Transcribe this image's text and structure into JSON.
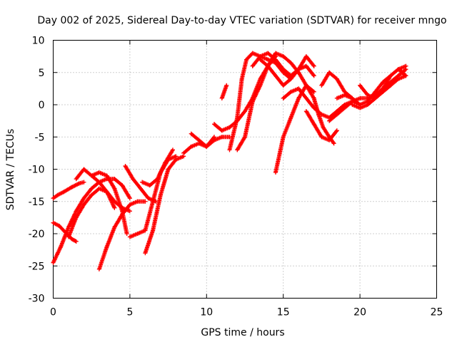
{
  "chart_data": {
    "type": "scatter",
    "title": "Day 002 of 2025, Sidereal Day-to-day VTEC variation (SDTVAR) for receiver mngo",
    "xlabel": "GPS time / hours",
    "ylabel": "SDTVAR / TECUs",
    "xlim": [
      0,
      25
    ],
    "ylim": [
      -30,
      10
    ],
    "xticks": [
      "0",
      "5",
      "10",
      "15",
      "20",
      "25"
    ],
    "yticks": [
      "10",
      "5",
      "0",
      "-5",
      "-10",
      "-15",
      "-20",
      "-25",
      "-30"
    ],
    "grid": true,
    "marker": "+",
    "color": "#ff0000",
    "series": [
      {
        "x": [
          0.0,
          0.3,
          0.7,
          1.2,
          1.7,
          2.0
        ],
        "y": [
          -14.5,
          -14.0,
          -13.5,
          -12.8,
          -12.2,
          -12.0
        ]
      },
      {
        "x": [
          0.0,
          0.5,
          1.0,
          1.5,
          2.0,
          2.5,
          3.0,
          3.5,
          4.0,
          4.5,
          5.0
        ],
        "y": [
          -24.5,
          -22.0,
          -19.0,
          -16.5,
          -14.5,
          -13.0,
          -12.0,
          -11.5,
          -11.5,
          -12.5,
          -14.5
        ]
      },
      {
        "x": [
          0.0,
          0.4,
          0.8,
          1.2,
          1.5
        ],
        "y": [
          -18.3,
          -18.8,
          -19.8,
          -20.8,
          -21.2
        ]
      },
      {
        "x": [
          1.0,
          1.5,
          2.0,
          2.5,
          3.0,
          3.5,
          4.0
        ],
        "y": [
          -20.5,
          -17.5,
          -15.5,
          -14.0,
          -13.0,
          -13.5,
          -16.0
        ]
      },
      {
        "x": [
          1.5,
          2.0,
          2.5,
          3.0,
          3.5,
          4.0,
          4.5,
          5.0
        ],
        "y": [
          -11.5,
          -10.0,
          -11.0,
          -12.0,
          -13.5,
          -15.0,
          -16.0,
          -16.5
        ]
      },
      {
        "x": [
          2.5,
          3.0,
          3.5,
          4.0,
          4.5,
          4.8
        ],
        "y": [
          -11.0,
          -10.5,
          -11.0,
          -13.0,
          -16.5,
          -20.0
        ]
      },
      {
        "x": [
          3.0,
          3.5,
          4.0,
          4.5,
          5.0,
          5.5,
          6.0
        ],
        "y": [
          -25.5,
          -22.0,
          -19.0,
          -17.0,
          -15.5,
          -15.0,
          -15.0
        ]
      },
      {
        "x": [
          4.7,
          5.2,
          5.7,
          6.2,
          6.7
        ],
        "y": [
          -9.5,
          -11.5,
          -13.0,
          -14.5,
          -15.0
        ]
      },
      {
        "x": [
          5.0,
          5.5,
          6.0,
          6.5,
          7.0,
          7.5,
          8.0
        ],
        "y": [
          -20.5,
          -20.0,
          -19.5,
          -15.0,
          -10.5,
          -8.5,
          -8.0
        ]
      },
      {
        "x": [
          6.0,
          6.5,
          7.0,
          7.5,
          8.0,
          8.5
        ],
        "y": [
          -23.0,
          -19.5,
          -14.0,
          -10.0,
          -8.5,
          -8.0
        ]
      },
      {
        "x": [
          5.8,
          6.3,
          6.8,
          7.3,
          7.8
        ],
        "y": [
          -12.0,
          -12.5,
          -11.5,
          -9.0,
          -7.0
        ]
      },
      {
        "x": [
          8.5,
          9.0,
          9.5,
          10.0,
          10.5,
          11.0,
          11.5
        ],
        "y": [
          -7.5,
          -6.5,
          -6.0,
          -6.5,
          -5.5,
          -5.0,
          -5.0
        ]
      },
      {
        "x": [
          9.0,
          9.5,
          10.0,
          10.5
        ],
        "y": [
          -4.5,
          -5.5,
          -6.5,
          -5.0
        ]
      },
      {
        "x": [
          10.5,
          11.0,
          11.5,
          12.0,
          12.5,
          13.0,
          13.5,
          14.0,
          14.5
        ],
        "y": [
          -3.0,
          -4.0,
          -3.5,
          -2.5,
          -1.0,
          1.0,
          4.0,
          6.0,
          7.5
        ]
      },
      {
        "x": [
          11.0,
          11.3
        ],
        "y": [
          1.0,
          3.0
        ]
      },
      {
        "x": [
          11.5,
          12.0,
          12.3,
          12.6,
          13.0,
          13.5,
          14.0,
          14.5,
          15.0,
          15.5
        ],
        "y": [
          -7.0,
          -2.0,
          4.0,
          7.0,
          8.0,
          7.5,
          7.0,
          6.5,
          5.0,
          4.0
        ]
      },
      {
        "x": [
          12.0,
          12.5,
          13.0,
          13.5,
          14.0,
          14.5,
          15.0,
          15.5,
          16.0,
          16.5,
          17.0
        ],
        "y": [
          -7.0,
          -5.0,
          0.5,
          3.0,
          6.0,
          8.0,
          7.5,
          6.5,
          5.0,
          3.0,
          1.0
        ]
      },
      {
        "x": [
          13.0,
          13.5,
          14.0,
          14.5,
          15.0,
          15.5,
          16.0,
          16.5,
          17.0
        ],
        "y": [
          6.0,
          7.5,
          8.0,
          7.0,
          5.5,
          4.5,
          5.5,
          6.0,
          4.5
        ]
      },
      {
        "x": [
          13.5,
          14.0,
          14.5,
          15.0,
          15.5,
          16.0,
          16.5,
          17.0
        ],
        "y": [
          7.0,
          6.0,
          4.5,
          3.0,
          4.0,
          5.5,
          7.5,
          6.0
        ]
      },
      {
        "x": [
          14.5,
          15.0,
          15.5,
          16.0,
          16.5,
          17.0
        ],
        "y": [
          -10.5,
          -5.0,
          -2.0,
          1.0,
          3.0,
          2.0
        ]
      },
      {
        "x": [
          15.0,
          15.5,
          16.0,
          16.5,
          17.0,
          17.5,
          18.0,
          18.5,
          19.0,
          19.5,
          20.0
        ],
        "y": [
          1.0,
          2.0,
          2.5,
          1.0,
          -0.5,
          -1.5,
          -2.0,
          -1.0,
          0.0,
          0.5,
          0.0
        ]
      },
      {
        "x": [
          16.5,
          17.0,
          17.5,
          18.0,
          18.5
        ],
        "y": [
          -1.0,
          -3.0,
          -5.0,
          -5.5,
          -4.0
        ]
      },
      {
        "x": [
          17.0,
          17.3,
          17.6,
          18.0,
          18.3
        ],
        "y": [
          1.0,
          -1.5,
          -3.5,
          -5.0,
          -6.0
        ]
      },
      {
        "x": [
          17.5,
          18.0,
          18.5,
          19.0,
          19.5
        ],
        "y": [
          3.0,
          5.0,
          4.0,
          2.0,
          1.0
        ]
      },
      {
        "x": [
          18.0,
          18.5,
          19.0,
          19.5,
          20.0,
          20.5,
          21.0,
          21.5,
          22.0,
          22.5,
          23.0
        ],
        "y": [
          -2.5,
          -1.5,
          -0.5,
          0.5,
          1.0,
          1.0,
          1.5,
          2.5,
          3.5,
          4.5,
          5.5
        ]
      },
      {
        "x": [
          18.5,
          19.0,
          19.5,
          20.0,
          20.5,
          21.0,
          21.5,
          22.0,
          22.5,
          23.0
        ],
        "y": [
          1.0,
          1.5,
          1.0,
          0.0,
          0.5,
          2.0,
          3.5,
          4.5,
          5.5,
          6.0
        ]
      },
      {
        "x": [
          19.5,
          20.0,
          20.5,
          21.0,
          21.5,
          22.0,
          22.5,
          23.0
        ],
        "y": [
          0.0,
          -0.5,
          0.0,
          1.0,
          2.0,
          3.0,
          4.0,
          4.5
        ]
      },
      {
        "x": [
          20.0,
          20.5,
          21.0,
          21.5,
          22.0,
          22.5,
          23.0
        ],
        "y": [
          3.0,
          1.5,
          1.0,
          2.5,
          4.5,
          5.5,
          4.5
        ]
      }
    ]
  }
}
